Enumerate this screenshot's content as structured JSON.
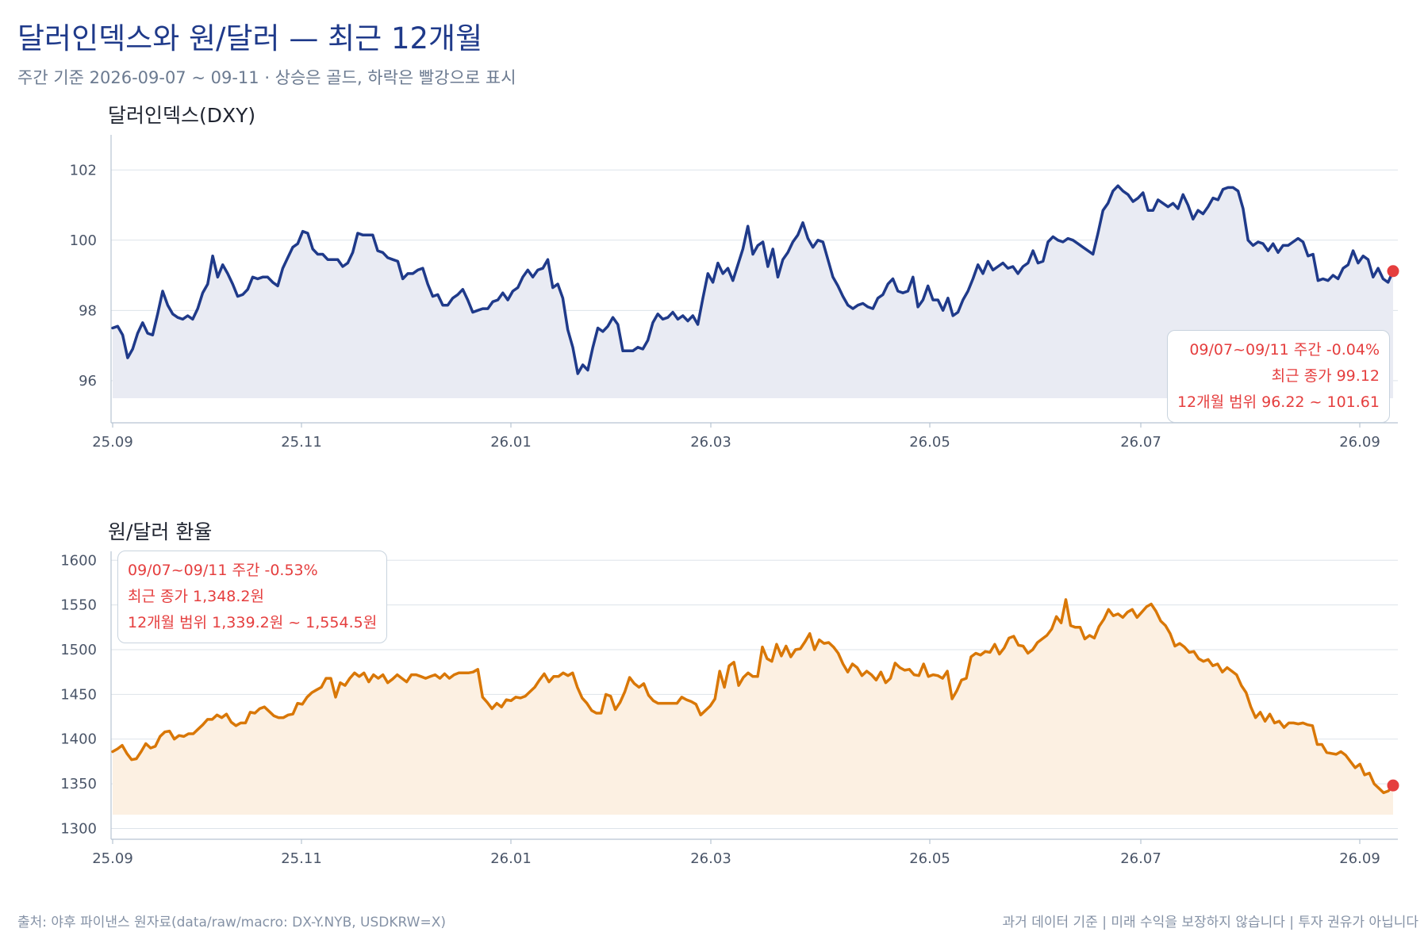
{
  "header": {
    "title": "달러인덱스와 원/달러 — 최근 12개월",
    "subtitle": "주간 기준 2026-09-07 ~ 09-11 · 상승은 골드, 하락은 빨강으로 표시"
  },
  "footer": {
    "source": "출처: 야후 파이낸스 원자료(data/raw/macro: DX-Y.NYB, USDKRW=X)",
    "disclaimer": "과거 데이터 기준 | 미래 수익을 보장하지 않습니다 | 투자 권유가 아닙니다"
  },
  "colors": {
    "dxy_line": "#1f3a8a",
    "krw_line": "#d97706",
    "marker": "#e53e3e",
    "annotation_text": "#e53e3e"
  },
  "chart_data": [
    {
      "type": "line",
      "title": "달러인덱스(DXY)",
      "x_tick_labels": [
        "25.09",
        "25.11",
        "26.01",
        "26.03",
        "26.05",
        "26.07",
        "26.09"
      ],
      "y_ticks": [
        96,
        98,
        100,
        102
      ],
      "ylim": [
        94.8,
        103.0
      ],
      "grid": true,
      "fill_area": true,
      "last_point_marker": true,
      "series": [
        {
          "values": [
            97.5,
            97.55,
            97.3,
            96.65,
            96.9,
            97.35,
            97.65,
            97.35,
            97.3,
            97.9,
            98.55,
            98.15,
            97.9,
            97.8,
            97.75,
            97.85,
            97.75,
            98.05,
            98.5,
            98.75,
            99.55,
            98.95,
            99.3,
            99.05,
            98.75,
            98.4,
            98.45,
            98.6,
            98.95,
            98.9,
            98.95,
            98.95,
            98.8,
            98.7,
            99.2,
            99.5,
            99.8,
            99.9,
            100.25,
            100.2,
            99.75,
            99.6,
            99.6,
            99.45,
            99.45,
            99.45,
            99.25,
            99.35,
            99.65,
            100.2,
            100.15,
            100.15,
            100.15,
            99.7,
            99.65,
            99.5,
            99.45,
            99.4,
            98.9,
            99.05,
            99.05,
            99.15,
            99.2,
            98.75,
            98.4,
            98.45,
            98.15,
            98.15,
            98.35,
            98.45,
            98.6,
            98.3,
            97.95,
            98.0,
            98.05,
            98.05,
            98.25,
            98.3,
            98.5,
            98.3,
            98.55,
            98.65,
            98.95,
            99.15,
            98.95,
            99.15,
            99.2,
            99.45,
            98.65,
            98.75,
            98.35,
            97.45,
            96.95,
            96.2,
            96.45,
            96.3,
            96.95,
            97.5,
            97.4,
            97.55,
            97.8,
            97.6,
            96.85,
            96.85,
            96.85,
            96.95,
            96.9,
            97.15,
            97.65,
            97.9,
            97.75,
            97.8,
            97.95,
            97.75,
            97.85,
            97.7,
            97.85,
            97.6,
            98.35,
            99.05,
            98.8,
            99.35,
            99.05,
            99.2,
            98.85,
            99.3,
            99.75,
            100.4,
            99.6,
            99.85,
            99.95,
            99.25,
            99.75,
            98.95,
            99.45,
            99.65,
            99.95,
            100.15,
            100.5,
            100.05,
            99.8,
            100.0,
            99.95,
            99.45,
            98.95,
            98.7,
            98.4,
            98.15,
            98.05,
            98.15,
            98.2,
            98.1,
            98.05,
            98.35,
            98.45,
            98.75,
            98.9,
            98.55,
            98.5,
            98.55,
            98.95,
            98.1,
            98.3,
            98.7,
            98.3,
            98.3,
            98.0,
            98.35,
            97.85,
            97.95,
            98.3,
            98.55,
            98.9,
            99.3,
            99.05,
            99.4,
            99.15,
            99.25,
            99.35,
            99.2,
            99.25,
            99.05,
            99.25,
            99.35,
            99.7,
            99.35,
            99.4,
            99.95,
            100.1,
            100.0,
            99.95,
            100.05,
            100.0,
            99.9,
            99.8,
            99.7,
            99.6,
            100.2,
            100.85,
            101.05,
            101.4,
            101.55,
            101.4,
            101.3,
            101.1,
            101.2,
            101.35,
            100.85,
            100.85,
            101.15,
            101.05,
            100.95,
            101.05,
            100.9,
            101.3,
            101.0,
            100.6,
            100.85,
            100.75,
            100.95,
            101.2,
            101.15,
            101.45,
            101.5,
            101.5,
            101.4,
            100.9,
            100.0,
            99.85,
            99.95,
            99.9,
            99.7,
            99.9,
            99.65,
            99.85,
            99.85,
            99.95,
            100.05,
            99.95,
            99.55,
            99.6,
            98.85,
            98.9,
            98.85,
            99.0,
            98.9,
            99.2,
            99.3,
            99.7,
            99.35,
            99.55,
            99.45,
            98.95,
            99.2,
            98.9,
            98.8,
            99.12
          ]
        }
      ],
      "annotation": [
        "09/07~09/11 주간 -0.04%",
        "최근 종가 99.12",
        "12개월 범위 96.22 ~ 101.61"
      ]
    },
    {
      "type": "line",
      "title": "원/달러 환율",
      "x_tick_labels": [
        "25.09",
        "25.11",
        "26.01",
        "26.03",
        "26.05",
        "26.07",
        "26.09"
      ],
      "y_ticks": [
        1300,
        1350,
        1400,
        1450,
        1500,
        1550,
        1600
      ],
      "ylim": [
        1288,
        1610
      ],
      "grid": true,
      "fill_area": true,
      "last_point_marker": true,
      "series": [
        {
          "values": [
            1386,
            1389,
            1393,
            1384,
            1377,
            1378,
            1386,
            1395,
            1390,
            1392,
            1403,
            1408,
            1409,
            1400,
            1404,
            1403,
            1406,
            1406,
            1411,
            1416,
            1422,
            1422,
            1427,
            1424,
            1428,
            1419,
            1415,
            1418,
            1418,
            1430,
            1429,
            1434,
            1436,
            1431,
            1426,
            1424,
            1424,
            1427,
            1428,
            1440,
            1439,
            1447,
            1452,
            1455,
            1458,
            1468,
            1468,
            1447,
            1463,
            1460,
            1468,
            1474,
            1470,
            1474,
            1464,
            1472,
            1468,
            1472,
            1463,
            1467,
            1472,
            1468,
            1464,
            1472,
            1472,
            1470,
            1468,
            1470,
            1472,
            1468,
            1473,
            1468,
            1472,
            1474,
            1474,
            1474,
            1475,
            1478,
            1447,
            1441,
            1434,
            1440,
            1436,
            1444,
            1443,
            1447,
            1446,
            1448,
            1453,
            1458,
            1466,
            1473,
            1464,
            1470,
            1470,
            1474,
            1471,
            1474,
            1458,
            1446,
            1440,
            1432,
            1429,
            1429,
            1450,
            1448,
            1433,
            1441,
            1453,
            1469,
            1462,
            1458,
            1462,
            1449,
            1443,
            1440,
            1440,
            1440,
            1440,
            1440,
            1447,
            1444,
            1442,
            1439,
            1427,
            1432,
            1437,
            1445,
            1476,
            1458,
            1482,
            1486,
            1460,
            1469,
            1474,
            1470,
            1470,
            1503,
            1490,
            1487,
            1506,
            1493,
            1504,
            1492,
            1500,
            1501,
            1509,
            1518,
            1500,
            1511,
            1507,
            1508,
            1503,
            1496,
            1484,
            1475,
            1484,
            1480,
            1471,
            1476,
            1472,
            1466,
            1475,
            1463,
            1468,
            1485,
            1480,
            1477,
            1478,
            1472,
            1471,
            1484,
            1470,
            1472,
            1471,
            1468,
            1476,
            1445,
            1454,
            1466,
            1468,
            1492,
            1496,
            1494,
            1498,
            1497,
            1506,
            1495,
            1502,
            1513,
            1515,
            1505,
            1504,
            1496,
            1500,
            1508,
            1512,
            1516,
            1523,
            1537,
            1530,
            1556,
            1527,
            1525,
            1525,
            1512,
            1516,
            1513,
            1526,
            1534,
            1545,
            1538,
            1540,
            1536,
            1542,
            1545,
            1536,
            1542,
            1548,
            1551,
            1543,
            1532,
            1527,
            1518,
            1504,
            1507,
            1503,
            1497,
            1498,
            1490,
            1487,
            1489,
            1482,
            1484,
            1475,
            1480,
            1476,
            1472,
            1460,
            1452,
            1436,
            1424,
            1430,
            1420,
            1428,
            1418,
            1420,
            1413,
            1418,
            1418,
            1417,
            1418,
            1416,
            1415,
            1394,
            1394,
            1385,
            1384,
            1383,
            1386,
            1382,
            1375,
            1368,
            1372,
            1360,
            1362,
            1350,
            1345,
            1340,
            1342,
            1348.2
          ]
        }
      ],
      "annotation": [
        "09/07~09/11 주간 -0.53%",
        "최근 종가 1,348.2원",
        "12개월 범위 1,339.2원 ~ 1,554.5원"
      ]
    }
  ]
}
